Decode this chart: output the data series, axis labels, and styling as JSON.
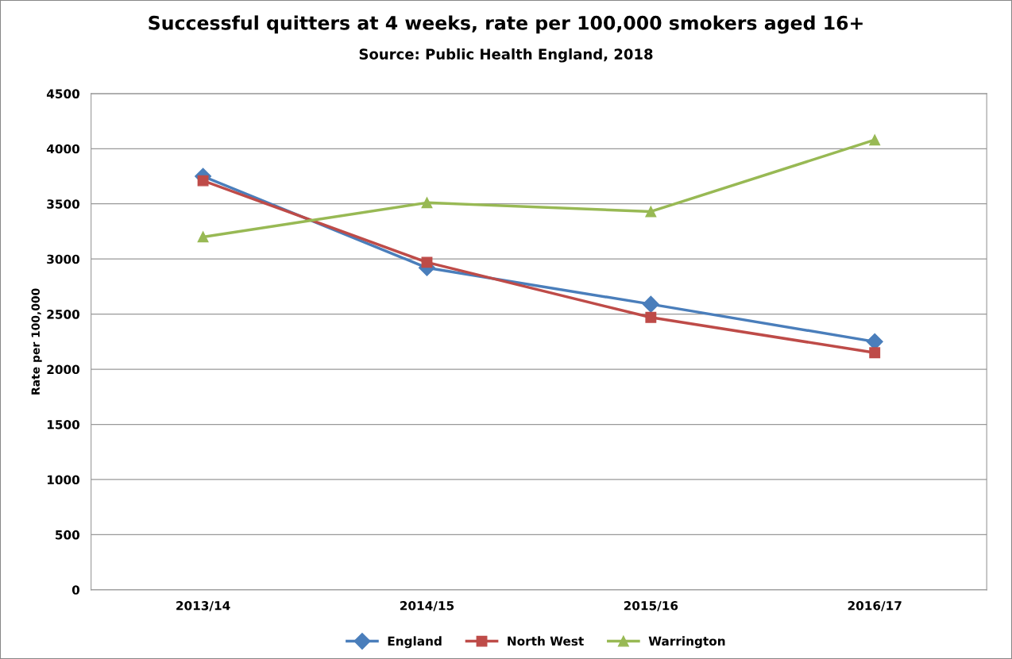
{
  "chart_data": {
    "type": "line",
    "title": "Successful quitters at 4 weeks, rate per 100,000 smokers aged 16+",
    "subtitle": "Source: Public Health England, 2018",
    "ylabel": "Rate per 100,000",
    "categories": [
      "2013/14",
      "2014/15",
      "2015/16",
      "2016/17"
    ],
    "series": [
      {
        "name": "England",
        "color": "#4a7ebb",
        "marker": "diamond",
        "values": [
          3750,
          2920,
          2590,
          2250
        ]
      },
      {
        "name": "North West",
        "color": "#be4b48",
        "marker": "square",
        "values": [
          3710,
          2970,
          2470,
          2150
        ]
      },
      {
        "name": "Warrington",
        "color": "#98b954",
        "marker": "triangle",
        "values": [
          3200,
          3510,
          3430,
          4080
        ]
      }
    ],
    "ylim": [
      0,
      4500
    ],
    "yticks": [
      0,
      500,
      1000,
      1500,
      2000,
      2500,
      3000,
      3500,
      4000,
      4500
    ],
    "grid": "y",
    "legend": "bottom",
    "line_style": "solid"
  }
}
